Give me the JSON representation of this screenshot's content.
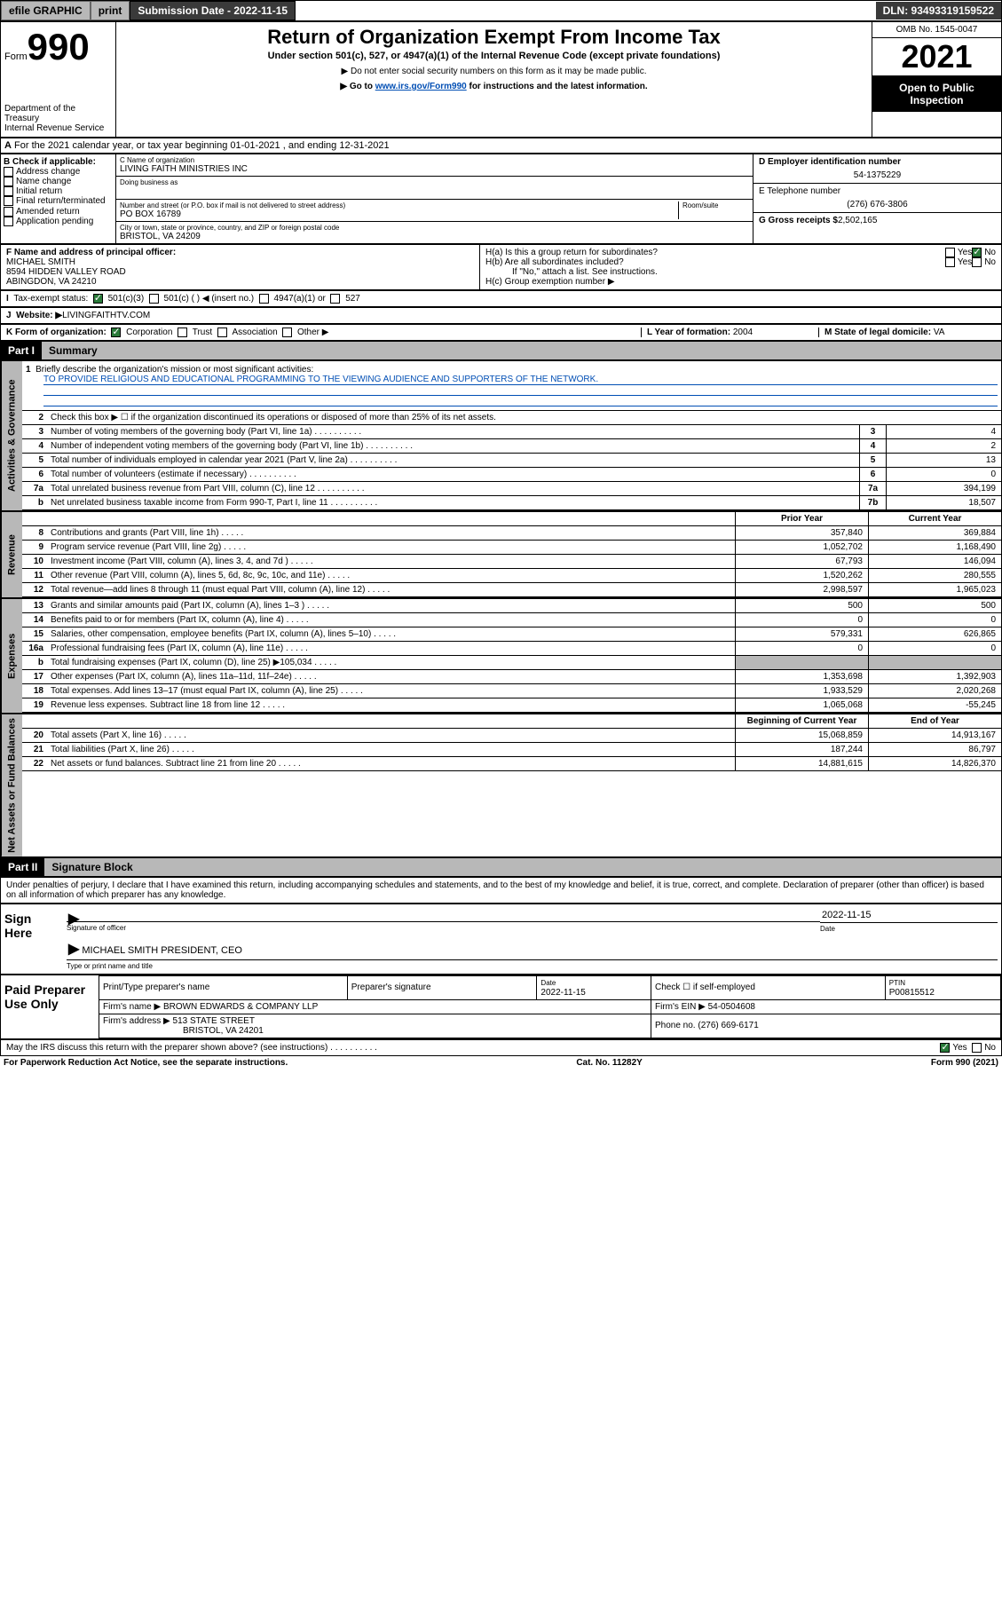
{
  "topbar": {
    "efile": "efile GRAPHIC",
    "print": "print",
    "submission_label": "Submission Date - 2022-11-15",
    "dln": "DLN: 93493319159522"
  },
  "header": {
    "form_label": "Form",
    "form_num": "990",
    "title": "Return of Organization Exempt From Income Tax",
    "subtitle": "Under section 501(c), 527, or 4947(a)(1) of the Internal Revenue Code (except private foundations)",
    "note1": "▶ Do not enter social security numbers on this form as it may be made public.",
    "note2_pre": "▶ Go to ",
    "note2_link": "www.irs.gov/Form990",
    "note2_post": " for instructions and the latest information.",
    "dept": "Department of the Treasury\nInternal Revenue Service",
    "omb": "OMB No. 1545-0047",
    "year": "2021",
    "inspection": "Open to Public Inspection"
  },
  "a": {
    "text": "For the 2021 calendar year, or tax year beginning 01-01-2021    , and ending 12-31-2021"
  },
  "b": {
    "label": "B Check if applicable:",
    "items": [
      "Address change",
      "Name change",
      "Initial return",
      "Final return/terminated",
      "Amended return",
      "Application pending"
    ]
  },
  "c": {
    "name_label": "C Name of organization",
    "name": "LIVING FAITH MINISTRIES INC",
    "dba_label": "Doing business as",
    "addr_label": "Number and street (or P.O. box if mail is not delivered to street address)",
    "room_label": "Room/suite",
    "addr": "PO BOX 16789",
    "city_label": "City or town, state or province, country, and ZIP or foreign postal code",
    "city": "BRISTOL, VA  24209"
  },
  "d": {
    "label": "D Employer identification number",
    "value": "54-1375229"
  },
  "e": {
    "label": "E Telephone number",
    "value": "(276) 676-3806"
  },
  "g": {
    "label": "G Gross receipts $",
    "value": "2,502,165"
  },
  "f": {
    "label": "F  Name and address of principal officer:",
    "name": "MICHAEL SMITH",
    "addr1": "8594 HIDDEN VALLEY ROAD",
    "addr2": "ABINGDON, VA  24210"
  },
  "h": {
    "a_label": "H(a)  Is this a group return for subordinates?",
    "b_label": "H(b)  Are all subordinates included?",
    "b_note": "If \"No,\" attach a list. See instructions.",
    "c_label": "H(c)  Group exemption number ▶",
    "yes": "Yes",
    "no": "No"
  },
  "i": {
    "label": "Tax-exempt status:",
    "opts": [
      "501(c)(3)",
      "501(c) (  ) ◀ (insert no.)",
      "4947(a)(1) or",
      "527"
    ]
  },
  "j": {
    "label": "Website: ▶",
    "value": " LIVINGFAITHTV.COM"
  },
  "k": {
    "label": "K Form of organization:",
    "opts": [
      "Corporation",
      "Trust",
      "Association",
      "Other ▶"
    ]
  },
  "l": {
    "label": "L Year of formation:",
    "value": "2004"
  },
  "m": {
    "label": "M State of legal domicile:",
    "value": "VA"
  },
  "parts": {
    "i": "Part I",
    "i_title": "Summary",
    "ii": "Part II",
    "ii_title": "Signature Block"
  },
  "vtabs": {
    "gov": "Activities & Governance",
    "rev": "Revenue",
    "exp": "Expenses",
    "net": "Net Assets or Fund Balances"
  },
  "summary": {
    "l1_label": "Briefly describe the organization's mission or most significant activities:",
    "l1_text": "TO PROVIDE RELIGIOUS AND EDUCATIONAL PROGRAMMING TO THE VIEWING AUDIENCE AND SUPPORTERS OF THE NETWORK.",
    "l2": "Check this box ▶ ☐  if the organization discontinued its operations or disposed of more than 25% of its net assets.",
    "lines_gov": [
      {
        "n": "3",
        "t": "Number of voting members of the governing body (Part VI, line 1a)",
        "box": "3",
        "v": "4"
      },
      {
        "n": "4",
        "t": "Number of independent voting members of the governing body (Part VI, line 1b)",
        "box": "4",
        "v": "2"
      },
      {
        "n": "5",
        "t": "Total number of individuals employed in calendar year 2021 (Part V, line 2a)",
        "box": "5",
        "v": "13"
      },
      {
        "n": "6",
        "t": "Total number of volunteers (estimate if necessary)",
        "box": "6",
        "v": "0"
      },
      {
        "n": "7a",
        "t": "Total unrelated business revenue from Part VIII, column (C), line 12",
        "box": "7a",
        "v": "394,199"
      },
      {
        "n": "b",
        "t": "Net unrelated business taxable income from Form 990-T, Part I, line 11",
        "box": "7b",
        "v": "18,507"
      }
    ],
    "col_prior": "Prior Year",
    "col_current": "Current Year",
    "col_begin": "Beginning of Current Year",
    "col_end": "End of Year",
    "lines_rev": [
      {
        "n": "8",
        "t": "Contributions and grants (Part VIII, line 1h)",
        "p": "357,840",
        "c": "369,884"
      },
      {
        "n": "9",
        "t": "Program service revenue (Part VIII, line 2g)",
        "p": "1,052,702",
        "c": "1,168,490"
      },
      {
        "n": "10",
        "t": "Investment income (Part VIII, column (A), lines 3, 4, and 7d )",
        "p": "67,793",
        "c": "146,094"
      },
      {
        "n": "11",
        "t": "Other revenue (Part VIII, column (A), lines 5, 6d, 8c, 9c, 10c, and 11e)",
        "p": "1,520,262",
        "c": "280,555"
      },
      {
        "n": "12",
        "t": "Total revenue—add lines 8 through 11 (must equal Part VIII, column (A), line 12)",
        "p": "2,998,597",
        "c": "1,965,023"
      }
    ],
    "lines_exp": [
      {
        "n": "13",
        "t": "Grants and similar amounts paid (Part IX, column (A), lines 1–3 )",
        "p": "500",
        "c": "500"
      },
      {
        "n": "14",
        "t": "Benefits paid to or for members (Part IX, column (A), line 4)",
        "p": "0",
        "c": "0"
      },
      {
        "n": "15",
        "t": "Salaries, other compensation, employee benefits (Part IX, column (A), lines 5–10)",
        "p": "579,331",
        "c": "626,865"
      },
      {
        "n": "16a",
        "t": "Professional fundraising fees (Part IX, column (A), line 11e)",
        "p": "0",
        "c": "0"
      },
      {
        "n": "b",
        "t": "Total fundraising expenses (Part IX, column (D), line 25) ▶105,034",
        "p": "",
        "c": "",
        "shaded": true
      },
      {
        "n": "17",
        "t": "Other expenses (Part IX, column (A), lines 11a–11d, 11f–24e)",
        "p": "1,353,698",
        "c": "1,392,903"
      },
      {
        "n": "18",
        "t": "Total expenses. Add lines 13–17 (must equal Part IX, column (A), line 25)",
        "p": "1,933,529",
        "c": "2,020,268"
      },
      {
        "n": "19",
        "t": "Revenue less expenses. Subtract line 18 from line 12",
        "p": "1,065,068",
        "c": "-55,245"
      }
    ],
    "lines_net": [
      {
        "n": "20",
        "t": "Total assets (Part X, line 16)",
        "p": "15,068,859",
        "c": "14,913,167"
      },
      {
        "n": "21",
        "t": "Total liabilities (Part X, line 26)",
        "p": "187,244",
        "c": "86,797"
      },
      {
        "n": "22",
        "t": "Net assets or fund balances. Subtract line 21 from line 20",
        "p": "14,881,615",
        "c": "14,826,370"
      }
    ]
  },
  "sig": {
    "declaration": "Under penalties of perjury, I declare that I have examined this return, including accompanying schedules and statements, and to the best of my knowledge and belief, it is true, correct, and complete. Declaration of preparer (other than officer) is based on all information of which preparer has any knowledge.",
    "sign_here": "Sign Here",
    "sig_officer": "Signature of officer",
    "date_label": "Date",
    "date": "2022-11-15",
    "name_title": "MICHAEL SMITH  PRESIDENT, CEO",
    "name_title_label": "Type or print name and title",
    "paid": "Paid Preparer Use Only",
    "prep_name_label": "Print/Type preparer's name",
    "prep_sig_label": "Preparer's signature",
    "prep_date": "2022-11-15",
    "check_if": "Check ☐ if self-employed",
    "ptin_label": "PTIN",
    "ptin": "P00815512",
    "firm_name_label": "Firm's name     ▶",
    "firm_name": "BROWN EDWARDS & COMPANY LLP",
    "firm_ein_label": "Firm's EIN ▶",
    "firm_ein": "54-0504608",
    "firm_addr_label": "Firm's address ▶",
    "firm_addr1": "513 STATE STREET",
    "firm_addr2": "BRISTOL, VA  24201",
    "phone_label": "Phone no.",
    "phone": "(276) 669-6171",
    "discuss": "May the IRS discuss this return with the preparer shown above? (see instructions)"
  },
  "footer": {
    "left": "For Paperwork Reduction Act Notice, see the separate instructions.",
    "mid": "Cat. No. 11282Y",
    "right": "Form 990 (2021)"
  }
}
